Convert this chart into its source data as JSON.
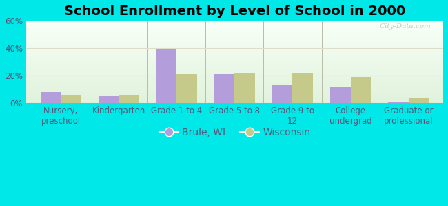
{
  "title": "School Enrollment by Level of School in 2000",
  "categories": [
    "Nursery,\npreschool",
    "Kindergarten",
    "Grade 1 to 4",
    "Grade 5 to 8",
    "Grade 9 to\n12",
    "College\nundergrad",
    "Graduate or\nprofessional"
  ],
  "brule_values": [
    8,
    5,
    39,
    21,
    13,
    12,
    1
  ],
  "wisconsin_values": [
    6,
    6,
    21,
    22,
    22,
    19,
    4
  ],
  "brule_color": "#b39ddb",
  "wisconsin_color": "#c5c98a",
  "ylim": [
    0,
    60
  ],
  "yticks": [
    0,
    20,
    40,
    60
  ],
  "ytick_labels": [
    "0%",
    "20%",
    "40%",
    "60%"
  ],
  "background_color": "#00e8e8",
  "legend_labels": [
    "Brule, WI",
    "Wisconsin"
  ],
  "bar_width": 0.35,
  "title_fontsize": 14,
  "tick_fontsize": 8.5,
  "legend_fontsize": 10,
  "tick_color": "#555577",
  "grid_color": "#ddddcc",
  "separator_color": "#bbbbaa"
}
